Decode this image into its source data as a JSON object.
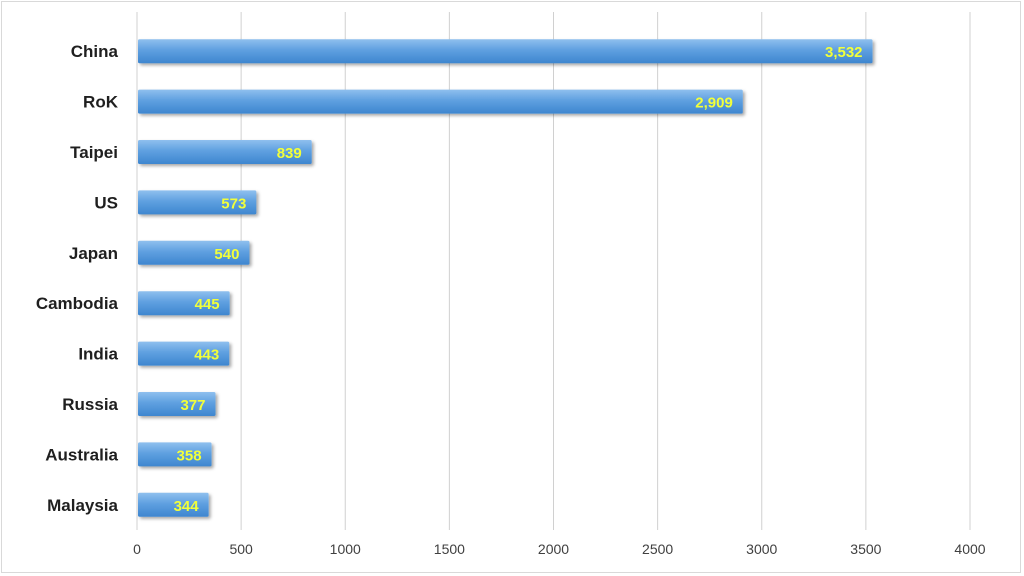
{
  "chart_data": {
    "type": "bar",
    "orientation": "horizontal",
    "categories": [
      "China",
      "RoK",
      "Taipei",
      "US",
      "Japan",
      "Cambodia",
      "India",
      "Russia",
      "Australia",
      "Malaysia"
    ],
    "values": [
      3532,
      2909,
      839,
      573,
      540,
      445,
      443,
      377,
      358,
      344
    ],
    "value_labels": [
      "3,532",
      "2,909",
      "839",
      "573",
      "540",
      "445",
      "443",
      "377",
      "358",
      "344"
    ],
    "xticks": [
      "0",
      "500",
      "1000",
      "1500",
      "2000",
      "2500",
      "3000",
      "3500",
      "4000"
    ],
    "xlim": [
      0,
      4000
    ],
    "grid": true,
    "legend": "none",
    "colors": {
      "bar_top": "#8fc0ee",
      "bar_bottom": "#3e86cf",
      "value_label": "#f2ff3a",
      "gridline": "#d0d0d0"
    }
  }
}
